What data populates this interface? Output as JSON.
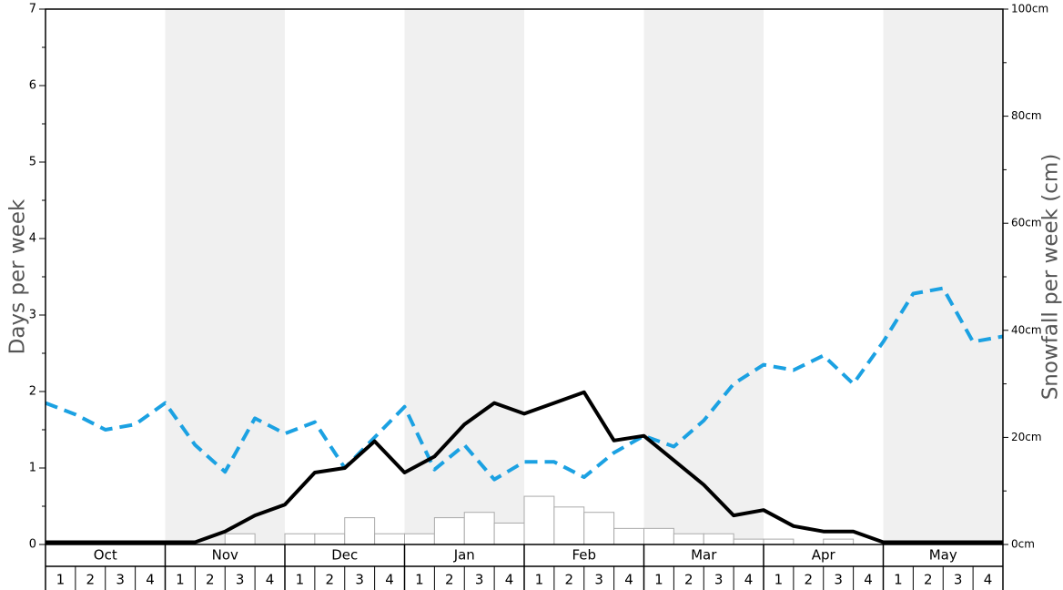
{
  "chart_data": {
    "type": "bar",
    "months": [
      "Oct",
      "Nov",
      "Dec",
      "Jan",
      "Feb",
      "Mar",
      "Apr",
      "May"
    ],
    "week_labels": [
      "1",
      "2",
      "3",
      "4"
    ],
    "ylabel": "Days per week",
    "y2label": "Snowfall per week (cm)",
    "ylim": [
      0,
      7
    ],
    "y_ticks": [
      "0",
      "1",
      "2",
      "3",
      "4",
      "5",
      "6",
      "7"
    ],
    "y2lim": [
      0,
      100
    ],
    "y2_ticks": [
      "0cm",
      "20cm",
      "40cm",
      "60cm",
      "80cm",
      "100cm"
    ],
    "shaded_months": [
      "Nov",
      "Jan",
      "Mar",
      "May"
    ],
    "snowfall_bars": {
      "color": "#ffffff",
      "stroke": "#aaaaaa",
      "values_cm": [
        0,
        0,
        0,
        0,
        0,
        0,
        2,
        0,
        2,
        2,
        5,
        2,
        2,
        5,
        6,
        4,
        9,
        7,
        6,
        3,
        3,
        2,
        2,
        1,
        1,
        0,
        1,
        0,
        0,
        0,
        0,
        0
      ]
    },
    "series": [
      {
        "style": "dashed",
        "color": "#1ba1e2",
        "values": [
          1.85,
          1.7,
          1.5,
          1.57,
          1.85,
          1.3,
          0.95,
          1.65,
          1.45,
          1.6,
          1.0,
          1.4,
          1.8,
          0.98,
          1.3,
          0.85,
          1.08,
          1.08,
          0.88,
          1.2,
          1.42,
          1.28,
          1.62,
          2.1,
          2.35,
          2.28,
          2.47,
          2.1,
          2.65,
          3.28,
          3.35,
          2.65,
          2.72
        ]
      },
      {
        "style": "solid",
        "color": "#000000",
        "values": [
          0.03,
          0.03,
          0.03,
          0.03,
          0.03,
          0.03,
          0.17,
          0.38,
          0.52,
          0.94,
          1.0,
          1.35,
          0.94,
          1.15,
          1.57,
          1.85,
          1.71,
          1.85,
          1.99,
          1.36,
          1.42,
          1.1,
          0.78,
          0.38,
          0.45,
          0.24,
          0.17,
          0.17,
          0.03,
          0.03,
          0.03,
          0.03,
          0.03
        ]
      }
    ]
  }
}
